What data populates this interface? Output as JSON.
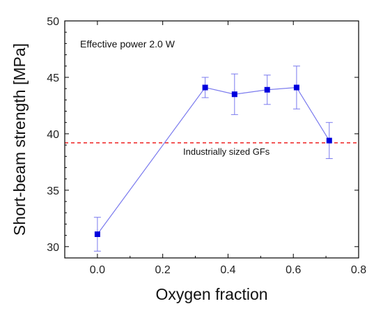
{
  "chart_data": {
    "type": "scatter",
    "xlabel": "Oxygen fraction",
    "ylabel": "Short-beam strength [MPa]",
    "xlim": [
      -0.1,
      0.8
    ],
    "ylim": [
      29,
      50
    ],
    "xticks": [
      0.0,
      0.2,
      0.4,
      0.6,
      0.8
    ],
    "xtick_labels": [
      "0.0",
      "0.2",
      "0.4",
      "0.6",
      "0.8"
    ],
    "yticks": [
      30,
      35,
      40,
      45,
      50
    ],
    "ytick_labels": [
      "30",
      "35",
      "40",
      "45",
      "50"
    ],
    "grid": false,
    "series": [
      {
        "x": [
          0.0,
          0.33,
          0.42,
          0.52,
          0.61,
          0.71
        ],
        "y": [
          31.1,
          44.1,
          43.5,
          43.9,
          44.1,
          39.4
        ],
        "error": [
          1.5,
          0.9,
          1.8,
          1.3,
          1.9,
          1.6
        ],
        "marker": "square",
        "line": true
      }
    ],
    "reference_line": {
      "y": 39.2,
      "style": "dashed",
      "label": "Industrially sized GFs"
    },
    "annotation": "Effective power 2.0 W",
    "colors": {
      "series": "#0000dd",
      "line": "#7a7aee",
      "reference": "#ee2020"
    }
  }
}
